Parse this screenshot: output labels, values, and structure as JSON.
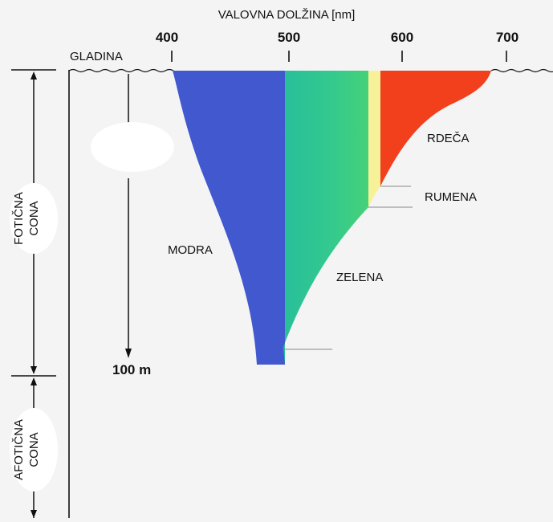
{
  "diagram": {
    "axis_title": "VALOVNA DOLŽINA [nm]",
    "surface_label": "GLADINA",
    "ticks": [
      "400",
      "500",
      "600",
      "700"
    ],
    "depth_label": "100 m",
    "zones": {
      "photic": [
        "FOTIČNA",
        "CONA"
      ],
      "aphotic": [
        "AFOTIČNA",
        "CONA"
      ]
    },
    "colors": [
      {
        "name": "MODRA",
        "hex": "#4158cf"
      },
      {
        "name": "ZELENA",
        "hex": "#2ec79a"
      },
      {
        "name": "RUMENA",
        "hex": "#f7f29a"
      },
      {
        "name": "RDEČA",
        "hex": "#f23f1c"
      }
    ]
  }
}
